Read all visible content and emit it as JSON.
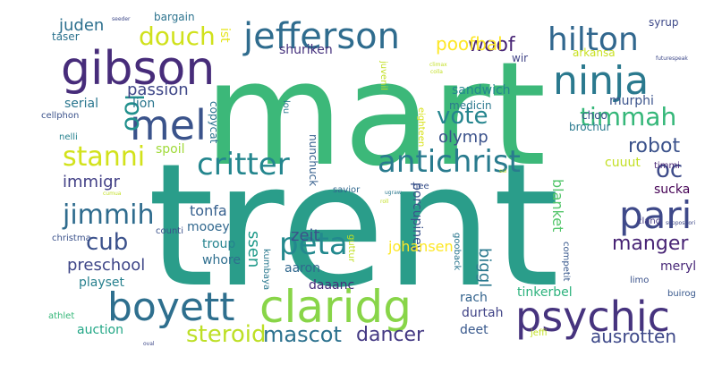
{
  "words": [
    {
      "text": "trent",
      "color": "#2a9d8a"
    },
    {
      "text": "mart",
      "color": "#3cb879"
    },
    {
      "text": "gibson",
      "color": "#472c7a"
    },
    {
      "text": "jefferson",
      "color": "#2f6c8e"
    },
    {
      "text": "ninja",
      "color": "#2a798e"
    },
    {
      "text": "hilton",
      "color": "#31678e"
    },
    {
      "text": "mel",
      "color": "#3a538b"
    },
    {
      "text": "antichrist",
      "color": "#297b8e"
    },
    {
      "text": "critter",
      "color": "#24868e"
    },
    {
      "text": "claridg",
      "color": "#88d548"
    },
    {
      "text": "psychic",
      "color": "#46337e"
    },
    {
      "text": "boyett",
      "color": "#2e6f8e"
    },
    {
      "text": "pari",
      "color": "#3e4989"
    },
    {
      "text": "timmah",
      "color": "#35b779"
    },
    {
      "text": "stanni",
      "color": "#d2e21b"
    },
    {
      "text": "peta",
      "color": "#23898e"
    },
    {
      "text": "douch",
      "color": "#d0e11c"
    },
    {
      "text": "jimmih",
      "color": "#2f6c8e"
    },
    {
      "text": "steroid",
      "color": "#bddf26"
    },
    {
      "text": "mascot",
      "color": "#2c718e"
    },
    {
      "text": "dancer",
      "color": "#443983"
    },
    {
      "text": "vote",
      "color": "#25858e"
    },
    {
      "text": "loo",
      "color": "#21908d"
    },
    {
      "text": "cub",
      "color": "#3b518b"
    },
    {
      "text": "oc",
      "color": "#3e4c8a"
    },
    {
      "text": "robot",
      "color": "#3b528b"
    },
    {
      "text": "woof",
      "color": "#482475"
    },
    {
      "text": "poofbal",
      "color": "#fde725"
    },
    {
      "text": "passion",
      "color": "#3f4788"
    },
    {
      "text": "immigr",
      "color": "#424086"
    },
    {
      "text": "olymp",
      "color": "#3b528b"
    },
    {
      "text": "manger",
      "color": "#482475"
    },
    {
      "text": "ausrotten",
      "color": "#3e4989"
    },
    {
      "text": "juden",
      "color": "#2d708e"
    },
    {
      "text": "shuriken",
      "color": "#46327e"
    },
    {
      "text": "wir",
      "color": "#414487"
    },
    {
      "text": "tonfa",
      "color": "#355f8d"
    },
    {
      "text": "zeit",
      "color": "#3b528b"
    },
    {
      "text": "preschool",
      "color": "#3f4788"
    },
    {
      "text": "sandwich",
      "color": "#24868e"
    },
    {
      "text": "porcupiney",
      "color": "#3a538b"
    },
    {
      "text": "nunchuck",
      "color": "#355f8d"
    },
    {
      "text": "johansen",
      "color": "#fde725"
    },
    {
      "text": "biggl",
      "color": "#2a788e"
    },
    {
      "text": "blanket",
      "color": "#52c569"
    },
    {
      "text": "tinkerbel",
      "color": "#2db27d"
    },
    {
      "text": "murphi",
      "color": "#3a538b"
    },
    {
      "text": "cuuut",
      "color": "#c2df23"
    },
    {
      "text": "sucka",
      "color": "#440154"
    },
    {
      "text": "meryl",
      "color": "#482878"
    },
    {
      "text": "auction",
      "color": "#21a685"
    },
    {
      "text": "durtah",
      "color": "#414487"
    },
    {
      "text": "deet",
      "color": "#38588c"
    },
    {
      "text": "rach",
      "color": "#33638d"
    },
    {
      "text": "daaanc",
      "color": "#472d7b"
    },
    {
      "text": "aaron",
      "color": "#31688e"
    },
    {
      "text": "playset",
      "color": "#27808e"
    },
    {
      "text": "troup",
      "color": "#25838e"
    },
    {
      "text": "whore",
      "color": "#2e6e8e"
    },
    {
      "text": "mooey",
      "color": "#31688e"
    },
    {
      "text": "ssen",
      "color": "#1f9a8a"
    },
    {
      "text": "serial",
      "color": "#2a768e"
    },
    {
      "text": "lion",
      "color": "#2a768e"
    },
    {
      "text": "spoil",
      "color": "#a0da39"
    },
    {
      "text": "choo",
      "color": "#3b528b"
    },
    {
      "text": "brochur",
      "color": "#29798e"
    },
    {
      "text": "ist",
      "color": "#e5e419"
    },
    {
      "text": "bargain",
      "color": "#2c738e"
    },
    {
      "text": "taser",
      "color": "#2c728e"
    },
    {
      "text": "syrup",
      "color": "#3e4989"
    },
    {
      "text": "arkansa",
      "color": "#c8e020"
    },
    {
      "text": "juvenil",
      "color": "#c2df23"
    },
    {
      "text": "medicin",
      "color": "#2a788e"
    },
    {
      "text": "lou",
      "color": "#2a788e"
    },
    {
      "text": "cellphon",
      "color": "#3b528b"
    },
    {
      "text": "nelli",
      "color": "#26818e"
    },
    {
      "text": "copycat",
      "color": "#2c738e"
    },
    {
      "text": "eighteen",
      "color": "#d8e219"
    },
    {
      "text": "timmi",
      "color": "#482475"
    },
    {
      "text": "clang",
      "color": "#443983"
    },
    {
      "text": "savior",
      "color": "#31688e"
    },
    {
      "text": "hee",
      "color": "#3b528b"
    },
    {
      "text": "gooback",
      "color": "#2a768e"
    },
    {
      "text": "guttur",
      "color": "#c2df23"
    },
    {
      "text": "competit",
      "color": "#38588c"
    },
    {
      "text": "christma",
      "color": "#3b528b"
    },
    {
      "text": "counti",
      "color": "#3b528b"
    },
    {
      "text": "kumbaya",
      "color": "#2a788e"
    },
    {
      "text": "limo",
      "color": "#3b528b"
    },
    {
      "text": "buirog",
      "color": "#38588c"
    },
    {
      "text": "athlet",
      "color": "#35b779"
    },
    {
      "text": "jeffi",
      "color": "#c2df23"
    },
    {
      "text": "oval",
      "color": "#3e4989"
    },
    {
      "text": "seeder",
      "color": "#3e4989"
    },
    {
      "text": "futurespeak",
      "color": "#3e4989"
    },
    {
      "text": "suppositori",
      "color": "#3e4989"
    },
    {
      "text": "climax",
      "color": "#c2df23"
    },
    {
      "text": "ugraw",
      "color": "#2a788e"
    },
    {
      "text": "cumua",
      "color": "#c2df23"
    },
    {
      "text": "sui",
      "color": "#c2df23"
    },
    {
      "text": "roll",
      "color": "#c2df23"
    },
    {
      "text": "colla",
      "color": "#c2df23"
    }
  ]
}
